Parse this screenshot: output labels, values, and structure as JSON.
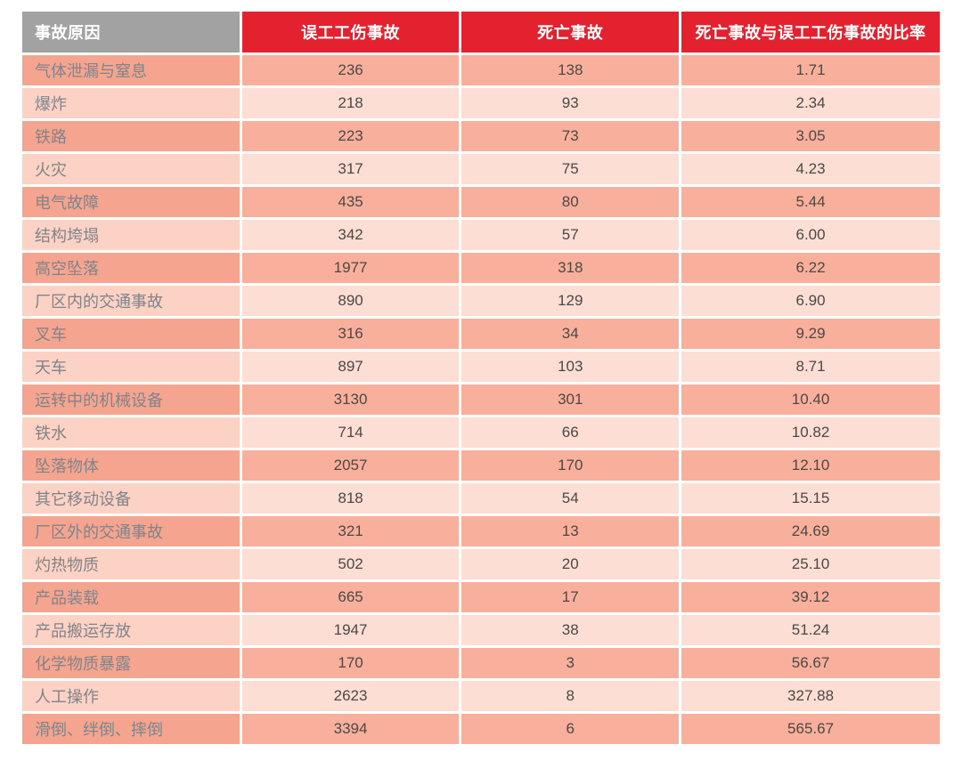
{
  "colors": {
    "page_background": "#ffffff",
    "header_red": "#e4212e",
    "header_gray": "#a2a2a2",
    "header_text": "#ffffff",
    "row_odd_label": "#f5a58f",
    "row_odd_data": "#f8b09c",
    "row_even_label": "#fbd2c4",
    "row_even_data": "#fcded4",
    "label_text": "#80848a",
    "num_text": "#4c4845"
  },
  "chart_data": {
    "type": "table",
    "columns": [
      "事故原因",
      "误工工伤事故",
      "死亡事故",
      "死亡事故与误工工伤事故的比率"
    ],
    "rows": [
      {
        "cause": "气体泄漏与窒息",
        "lost_time": "236",
        "fatal": "138",
        "ratio": "1.71"
      },
      {
        "cause": "爆炸",
        "lost_time": "218",
        "fatal": "93",
        "ratio": "2.34"
      },
      {
        "cause": "铁路",
        "lost_time": "223",
        "fatal": "73",
        "ratio": "3.05"
      },
      {
        "cause": "火灾",
        "lost_time": "317",
        "fatal": "75",
        "ratio": "4.23"
      },
      {
        "cause": "电气故障",
        "lost_time": "435",
        "fatal": "80",
        "ratio": "5.44"
      },
      {
        "cause": "结构垮塌",
        "lost_time": "342",
        "fatal": "57",
        "ratio": "6.00"
      },
      {
        "cause": "高空坠落",
        "lost_time": "1977",
        "fatal": "318",
        "ratio": "6.22"
      },
      {
        "cause": "厂区内的交通事故",
        "lost_time": "890",
        "fatal": "129",
        "ratio": "6.90"
      },
      {
        "cause": "叉车",
        "lost_time": "316",
        "fatal": "34",
        "ratio": "9.29"
      },
      {
        "cause": "天车",
        "lost_time": "897",
        "fatal": "103",
        "ratio": "8.71"
      },
      {
        "cause": "运转中的机械设备",
        "lost_time": "3130",
        "fatal": "301",
        "ratio": "10.40"
      },
      {
        "cause": "铁水",
        "lost_time": "714",
        "fatal": "66",
        "ratio": "10.82"
      },
      {
        "cause": "坠落物体",
        "lost_time": "2057",
        "fatal": "170",
        "ratio": "12.10"
      },
      {
        "cause": "其它移动设备",
        "lost_time": "818",
        "fatal": "54",
        "ratio": "15.15"
      },
      {
        "cause": "厂区外的交通事故",
        "lost_time": "321",
        "fatal": "13",
        "ratio": "24.69"
      },
      {
        "cause": "灼热物质",
        "lost_time": "502",
        "fatal": "20",
        "ratio": "25.10"
      },
      {
        "cause": "产品装载",
        "lost_time": "665",
        "fatal": "17",
        "ratio": "39.12"
      },
      {
        "cause": "产品搬运存放",
        "lost_time": "1947",
        "fatal": "38",
        "ratio": "51.24"
      },
      {
        "cause": "化学物质暴露",
        "lost_time": "170",
        "fatal": "3",
        "ratio": "56.67"
      },
      {
        "cause": "人工操作",
        "lost_time": "2623",
        "fatal": "8",
        "ratio": "327.88"
      },
      {
        "cause": "滑倒、绊倒、摔倒",
        "lost_time": "3394",
        "fatal": "6",
        "ratio": "565.67"
      }
    ]
  }
}
